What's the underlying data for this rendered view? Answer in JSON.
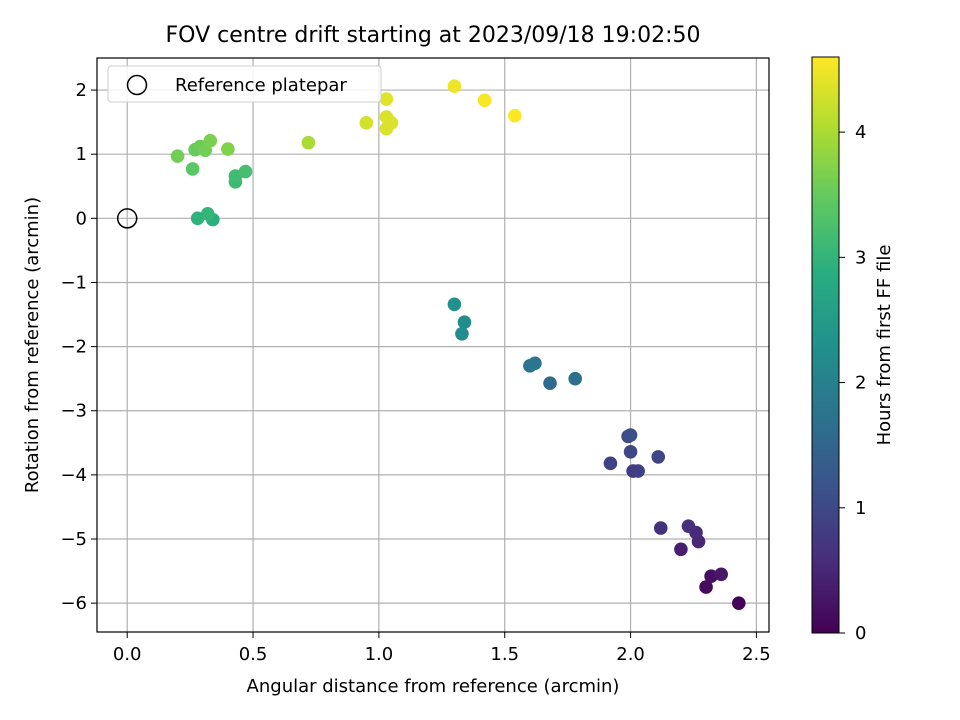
{
  "chart_data": {
    "type": "scatter",
    "title": "FOV centre drift starting at 2023/09/18 19:02:50",
    "xlabel": "Angular distance from reference (arcmin)",
    "ylabel": "Rotation from reference (arcmin)",
    "xlim": [
      -0.12,
      2.55
    ],
    "ylim": [
      -6.45,
      2.5
    ],
    "xticks": [
      0.0,
      0.5,
      1.0,
      1.5,
      2.0,
      2.5
    ],
    "xtick_labels": [
      "0.0",
      "0.5",
      "1.0",
      "1.5",
      "2.0",
      "2.5"
    ],
    "yticks": [
      2,
      1,
      0,
      -1,
      -2,
      -3,
      -4,
      -5,
      -6
    ],
    "ytick_labels": [
      "2",
      "1",
      "0",
      "−1",
      "−2",
      "−3",
      "−4",
      "−5",
      "−6"
    ],
    "grid": true,
    "legend": {
      "placement": "upper-left",
      "entries": [
        "Reference platepar"
      ]
    },
    "reference_point": {
      "x": 0.0,
      "y": 0.0,
      "marker": "open-circle"
    },
    "colorbar": {
      "label": "Hours from first FF file",
      "colormap": "viridis",
      "range": [
        0,
        4.6
      ],
      "ticks": [
        0,
        1,
        2,
        3,
        4
      ],
      "tick_labels": [
        "0",
        "1",
        "2",
        "3",
        "4"
      ]
    },
    "points": [
      {
        "x": 2.43,
        "y": -6.0,
        "c": 0.05
      },
      {
        "x": 2.3,
        "y": -5.75,
        "c": 0.15
      },
      {
        "x": 2.32,
        "y": -5.58,
        "c": 0.2
      },
      {
        "x": 2.36,
        "y": -5.55,
        "c": 0.3
      },
      {
        "x": 2.2,
        "y": -5.16,
        "c": 0.4
      },
      {
        "x": 2.27,
        "y": -5.04,
        "c": 0.5
      },
      {
        "x": 2.26,
        "y": -4.9,
        "c": 0.55
      },
      {
        "x": 2.23,
        "y": -4.8,
        "c": 0.6
      },
      {
        "x": 2.12,
        "y": -4.83,
        "c": 0.65
      },
      {
        "x": 2.01,
        "y": -3.94,
        "c": 0.8
      },
      {
        "x": 2.03,
        "y": -3.94,
        "c": 0.85
      },
      {
        "x": 1.92,
        "y": -3.82,
        "c": 0.9
      },
      {
        "x": 2.11,
        "y": -3.72,
        "c": 0.95
      },
      {
        "x": 2.0,
        "y": -3.64,
        "c": 1.0
      },
      {
        "x": 1.99,
        "y": -3.4,
        "c": 1.05
      },
      {
        "x": 2.0,
        "y": -3.38,
        "c": 1.1
      },
      {
        "x": 1.68,
        "y": -2.57,
        "c": 1.6
      },
      {
        "x": 1.78,
        "y": -2.5,
        "c": 1.7
      },
      {
        "x": 1.6,
        "y": -2.3,
        "c": 1.75
      },
      {
        "x": 1.62,
        "y": -2.26,
        "c": 1.8
      },
      {
        "x": 1.33,
        "y": -1.8,
        "c": 2.2
      },
      {
        "x": 1.34,
        "y": -1.62,
        "c": 2.25
      },
      {
        "x": 1.3,
        "y": -1.34,
        "c": 2.3
      },
      {
        "x": 0.34,
        "y": -0.02,
        "c": 2.9
      },
      {
        "x": 0.28,
        "y": 0.0,
        "c": 2.95
      },
      {
        "x": 0.32,
        "y": 0.07,
        "c": 3.0
      },
      {
        "x": 0.43,
        "y": 0.57,
        "c": 3.1
      },
      {
        "x": 0.43,
        "y": 0.66,
        "c": 3.15
      },
      {
        "x": 0.47,
        "y": 0.73,
        "c": 3.2
      },
      {
        "x": 0.26,
        "y": 0.77,
        "c": 3.4
      },
      {
        "x": 0.2,
        "y": 0.97,
        "c": 3.6
      },
      {
        "x": 0.27,
        "y": 1.07,
        "c": 3.5
      },
      {
        "x": 0.29,
        "y": 1.12,
        "c": 3.55
      },
      {
        "x": 0.31,
        "y": 1.06,
        "c": 3.6
      },
      {
        "x": 0.33,
        "y": 1.21,
        "c": 3.65
      },
      {
        "x": 0.4,
        "y": 1.08,
        "c": 3.7
      },
      {
        "x": 0.72,
        "y": 1.18,
        "c": 4.0
      },
      {
        "x": 0.95,
        "y": 1.49,
        "c": 4.3
      },
      {
        "x": 1.03,
        "y": 1.58,
        "c": 4.35
      },
      {
        "x": 1.05,
        "y": 1.49,
        "c": 4.35
      },
      {
        "x": 1.03,
        "y": 1.4,
        "c": 4.35
      },
      {
        "x": 1.03,
        "y": 1.86,
        "c": 4.4
      },
      {
        "x": 1.3,
        "y": 2.06,
        "c": 4.5
      },
      {
        "x": 1.42,
        "y": 1.84,
        "c": 4.55
      },
      {
        "x": 1.54,
        "y": 1.6,
        "c": 4.6
      }
    ]
  }
}
